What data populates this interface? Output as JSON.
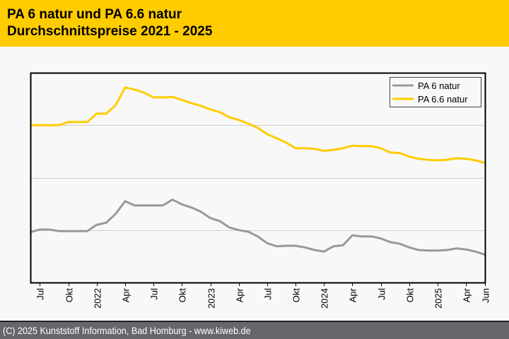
{
  "header": {
    "title_line1": "PA 6 natur und PA 6.6 natur",
    "title_line2": "Durchschnittspreise 2021 - 2025",
    "background": "#ffcc00"
  },
  "footer": {
    "text": "(C) 2025 Kunststoff Information, Bad Homburg - www.kiweb.de",
    "background": "#66676b"
  },
  "chart_data": {
    "type": "line",
    "title": "PA 6 natur und PA 6.6 natur Durchschnittspreise 2021 - 2025",
    "xlabel": "",
    "ylabel": "",
    "y_tick_labels_shown": false,
    "y_unit": "relative index (no y-axis labels shown; gridlines at 1, 2, 3)",
    "ylim": [
      0,
      4
    ],
    "y_gridlines": [
      1,
      2,
      3
    ],
    "grid": true,
    "legend": "top-right",
    "x": [
      "2021-06",
      "2021-07",
      "2021-08",
      "2021-09",
      "2021-10",
      "2021-11",
      "2021-12",
      "2022-01",
      "2022-02",
      "2022-03",
      "2022-04",
      "2022-05",
      "2022-06",
      "2022-07",
      "2022-08",
      "2022-09",
      "2022-10",
      "2022-11",
      "2022-12",
      "2023-01",
      "2023-02",
      "2023-03",
      "2023-04",
      "2023-05",
      "2023-06",
      "2023-07",
      "2023-08",
      "2023-09",
      "2023-10",
      "2023-11",
      "2023-12",
      "2024-01",
      "2024-02",
      "2024-03",
      "2024-04",
      "2024-05",
      "2024-06",
      "2024-07",
      "2024-08",
      "2024-09",
      "2024-10",
      "2024-11",
      "2024-12",
      "2025-01",
      "2025-02",
      "2025-03",
      "2025-04",
      "2025-05",
      "2025-06"
    ],
    "x_ticks": [
      {
        "index": 1,
        "label": "Jul"
      },
      {
        "index": 4,
        "label": "Okt"
      },
      {
        "index": 7,
        "label": "2022"
      },
      {
        "index": 10,
        "label": "Apr"
      },
      {
        "index": 13,
        "label": "Jul"
      },
      {
        "index": 16,
        "label": "Okt"
      },
      {
        "index": 19,
        "label": "2023"
      },
      {
        "index": 22,
        "label": "Apr"
      },
      {
        "index": 25,
        "label": "Jul"
      },
      {
        "index": 28,
        "label": "Okt"
      },
      {
        "index": 31,
        "label": "2024"
      },
      {
        "index": 34,
        "label": "Apr"
      },
      {
        "index": 37,
        "label": "Jul"
      },
      {
        "index": 40,
        "label": "Okt"
      },
      {
        "index": 43,
        "label": "2025"
      },
      {
        "index": 46,
        "label": "Apr"
      },
      {
        "index": 48,
        "label": "Jun"
      }
    ],
    "series": [
      {
        "name": "PA 6 natur",
        "color": "#999999",
        "values": [
          0.96,
          1.01,
          1.01,
          0.98,
          0.98,
          0.98,
          0.98,
          1.1,
          1.14,
          1.31,
          1.55,
          1.47,
          1.47,
          1.47,
          1.47,
          1.58,
          1.49,
          1.43,
          1.35,
          1.23,
          1.17,
          1.05,
          1.0,
          0.97,
          0.88,
          0.75,
          0.69,
          0.7,
          0.7,
          0.67,
          0.62,
          0.59,
          0.69,
          0.71,
          0.9,
          0.88,
          0.88,
          0.84,
          0.77,
          0.74,
          0.67,
          0.62,
          0.61,
          0.61,
          0.62,
          0.65,
          0.63,
          0.59,
          0.53
        ]
      },
      {
        "name": "PA 6.6 natur",
        "color": "#ffcc00",
        "values": [
          3.0,
          3.0,
          3.0,
          3.0,
          3.06,
          3.06,
          3.06,
          3.22,
          3.22,
          3.38,
          3.72,
          3.68,
          3.62,
          3.53,
          3.53,
          3.54,
          3.48,
          3.42,
          3.37,
          3.3,
          3.25,
          3.15,
          3.1,
          3.03,
          2.95,
          2.83,
          2.75,
          2.67,
          2.56,
          2.56,
          2.55,
          2.51,
          2.53,
          2.56,
          2.61,
          2.6,
          2.6,
          2.56,
          2.48,
          2.47,
          2.4,
          2.36,
          2.34,
          2.33,
          2.34,
          2.37,
          2.36,
          2.33,
          2.28
        ]
      }
    ]
  }
}
